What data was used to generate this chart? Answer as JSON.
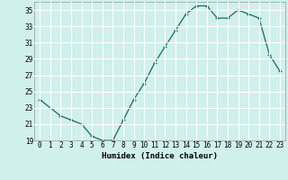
{
  "x": [
    0,
    1,
    2,
    3,
    4,
    5,
    6,
    7,
    8,
    9,
    10,
    11,
    12,
    13,
    14,
    15,
    16,
    17,
    18,
    19,
    20,
    21,
    22,
    23
  ],
  "y": [
    24,
    23,
    22,
    21.5,
    21,
    19.5,
    19,
    19,
    21.5,
    24,
    26,
    28.5,
    30.5,
    32.5,
    34.5,
    35.5,
    35.5,
    34,
    34,
    35,
    34.5,
    34,
    29.5,
    27.5
  ],
  "line_color": "#1a6b5a",
  "marker_color": "#1a6b5a",
  "bg_color": "#d0f0ec",
  "grid_color": "#ffffff",
  "xlabel": "Humidex (Indice chaleur)",
  "xlim": [
    -0.5,
    23.5
  ],
  "ylim": [
    19,
    36
  ],
  "yticks": [
    19,
    21,
    23,
    25,
    27,
    29,
    31,
    33,
    35
  ],
  "xticks": [
    0,
    1,
    2,
    3,
    4,
    5,
    6,
    7,
    8,
    9,
    10,
    11,
    12,
    13,
    14,
    15,
    16,
    17,
    18,
    19,
    20,
    21,
    22,
    23
  ],
  "tick_fontsize": 5.5,
  "xlabel_fontsize": 6.5
}
